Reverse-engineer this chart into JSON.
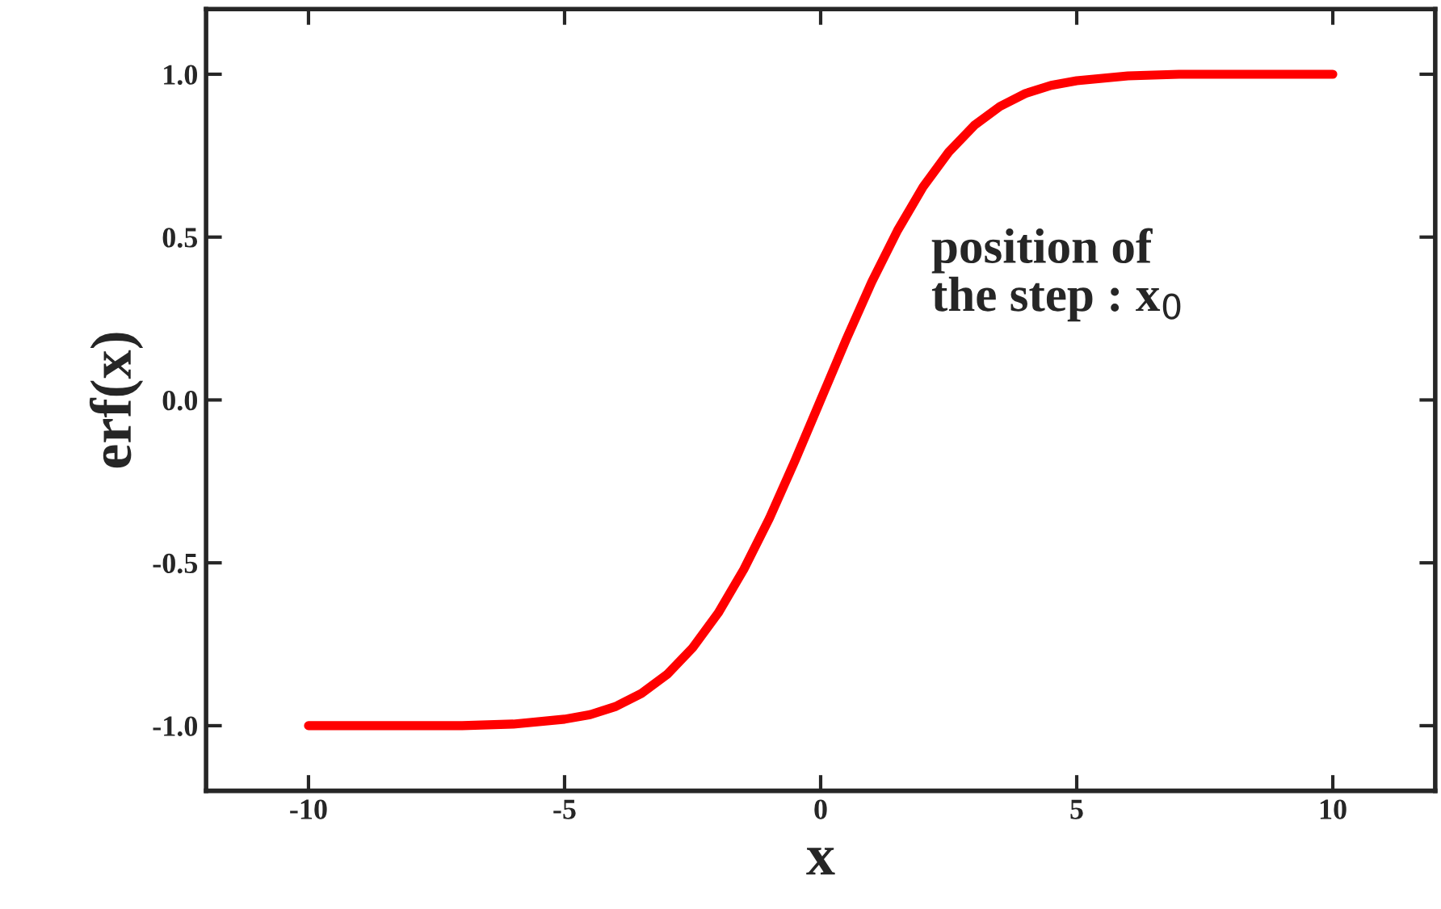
{
  "chart_data": {
    "type": "line",
    "xlabel": "x",
    "ylabel": "erf(x)",
    "annotations": [
      "position of\nthe step : x$_{0}$"
    ],
    "x": [
      -10,
      -8,
      -7,
      -6,
      -5,
      -4.5,
      -4,
      -3.5,
      -3,
      -2.5,
      -2,
      -1.5,
      -1,
      -0.5,
      0,
      0.5,
      1,
      1.5,
      2,
      2.5,
      3,
      3.5,
      4,
      4.5,
      5,
      6,
      7,
      8,
      10
    ],
    "series": [
      {
        "color": "#ff0000",
        "values": [
          -1.0,
          -1.0,
          -1.0,
          -0.995,
          -0.98,
          -0.966,
          -0.941,
          -0.901,
          -0.843,
          -0.761,
          -0.654,
          -0.52,
          -0.363,
          -0.186,
          0.0,
          0.186,
          0.363,
          0.52,
          0.654,
          0.761,
          0.843,
          0.901,
          0.941,
          0.966,
          0.98,
          0.995,
          1.0,
          1.0,
          1.0
        ]
      }
    ],
    "xlim": [
      -12,
      12
    ],
    "ylim": [
      -1.2,
      1.2
    ],
    "xticks": [
      -10,
      -5,
      0,
      5,
      10
    ],
    "yticks": [
      {
        "value": -1.0,
        "label": "-1.0"
      },
      {
        "value": -0.5,
        "label": "-0.5"
      },
      {
        "value": 0.0,
        "label": "0.0"
      },
      {
        "value": 0.5,
        "label": "0.5"
      },
      {
        "value": 1.0,
        "label": "1.0"
      }
    ],
    "grid": false,
    "legend": false,
    "marker": "none",
    "line_style": "solid"
  }
}
